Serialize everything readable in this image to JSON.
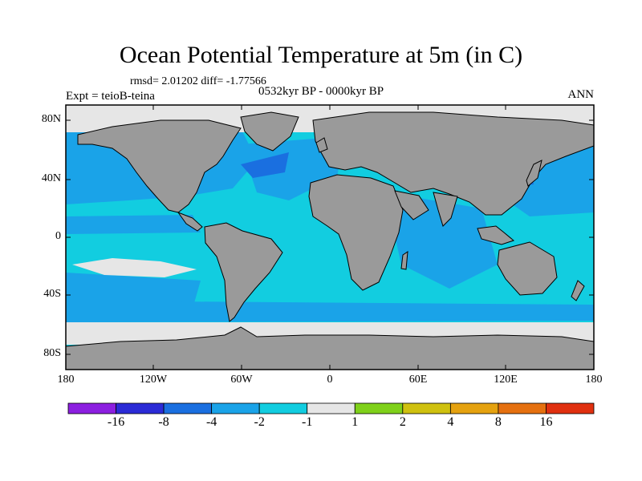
{
  "title": "Ocean Potential Temperature at 5m (in C)",
  "stats": "rmsd= 2.01202 diff= -1.77566",
  "expt": "Expt = teioB-teina",
  "period": "0532kyr BP - 0000kyr BP",
  "season": "ANN",
  "lat_ticks": [
    "80N",
    "40N",
    "0",
    "40S",
    "80S"
  ],
  "lon_ticks": [
    "180",
    "120W",
    "60W",
    "0",
    "60E",
    "120E",
    "180"
  ],
  "colorbar": {
    "labels": [
      "-16",
      "-8",
      "-4",
      "-2",
      "-1",
      "1",
      "2",
      "4",
      "8",
      "16"
    ],
    "colors": [
      "#8c1fe0",
      "#2b2bd6",
      "#1a6fe0",
      "#1aa3e8",
      "#12cde0",
      "#e6e6e6",
      "#7fd11a",
      "#cfc10f",
      "#e5a20f",
      "#e5700f",
      "#e0300f"
    ]
  },
  "map_colors": {
    "land": "#9a9a9a",
    "ocean_main": "#12cde0",
    "ocean_cooler": "#1aa3e8",
    "ocean_coolest": "#1a6fe0",
    "near_zero": "#e6e6e6"
  }
}
